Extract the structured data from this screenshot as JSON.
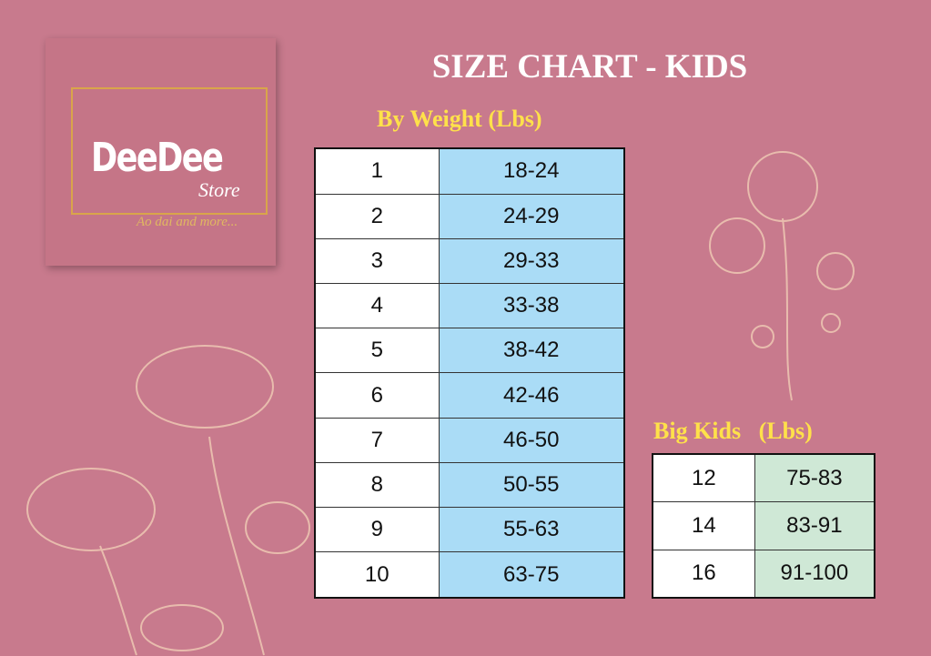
{
  "logo": {
    "name": "DeeDee",
    "suffix": "Store",
    "tagline": "Ao dai and more..."
  },
  "title": "SIZE CHART - KIDS",
  "weight_table": {
    "heading": "By Weight (Lbs)",
    "rows": [
      [
        "1",
        "18-24"
      ],
      [
        "2",
        "24-29"
      ],
      [
        "3",
        "29-33"
      ],
      [
        "4",
        "33-38"
      ],
      [
        "5",
        "38-42"
      ],
      [
        "6",
        "42-46"
      ],
      [
        "7",
        "46-50"
      ],
      [
        "8",
        "50-55"
      ],
      [
        "9",
        "55-63"
      ],
      [
        "10",
        "63-75"
      ]
    ]
  },
  "big_kids_table": {
    "heading": "Big Kids   (Lbs)",
    "rows": [
      [
        "12",
        "75-83"
      ],
      [
        "14",
        "83-91"
      ],
      [
        "16",
        "91-100"
      ]
    ]
  }
}
